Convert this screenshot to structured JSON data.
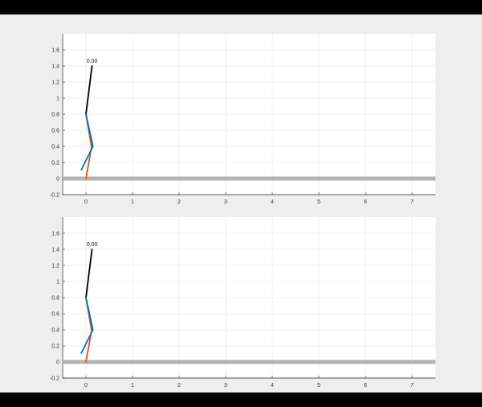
{
  "colors": {
    "background": "#efeeef",
    "axes_background": "#ffffff",
    "grid": "#e6e6e6",
    "axis": "#222222",
    "ground": "#b3b3b3",
    "torso": "#000000",
    "leg_a": "#d95319",
    "leg_b": "#0072bd"
  },
  "chart_data": [
    {
      "type": "line",
      "title": "",
      "xlabel": "",
      "ylabel": "",
      "xlim": [
        -0.5,
        7.5
      ],
      "ylim": [
        -0.2,
        1.8
      ],
      "xticks": [
        "0",
        "1",
        "2",
        "3",
        "4",
        "5",
        "6",
        "7"
      ],
      "yticks": [
        "-0.2",
        "0",
        "0.2",
        "0.4",
        "0.6",
        "0.8",
        "1",
        "1.2",
        "1.4",
        "1.6"
      ],
      "grid": true,
      "ground": {
        "y": 0
      },
      "time_label": {
        "text": "0.00",
        "x": 0.13,
        "y": 1.44
      },
      "series": [
        {
          "color": "#000000",
          "x": [
            0.0,
            0.13
          ],
          "y": [
            0.8,
            1.4
          ]
        },
        {
          "color": "#d95319",
          "x": [
            0.0,
            0.12,
            0.0
          ],
          "y": [
            0.8,
            0.39,
            0.0
          ]
        },
        {
          "color": "#0072bd",
          "x": [
            0.0,
            0.15,
            -0.1
          ],
          "y": [
            0.8,
            0.4,
            0.11
          ]
        }
      ]
    },
    {
      "type": "line",
      "title": "",
      "xlabel": "",
      "ylabel": "",
      "xlim": [
        -0.5,
        7.5
      ],
      "ylim": [
        -0.2,
        1.8
      ],
      "xticks": [
        "0",
        "1",
        "2",
        "3",
        "4",
        "5",
        "6",
        "7"
      ],
      "yticks": [
        "-0.2",
        "0",
        "0.2",
        "0.4",
        "0.6",
        "0.8",
        "1",
        "1.2",
        "1.4",
        "1.6"
      ],
      "grid": true,
      "ground": {
        "y": 0
      },
      "time_label": {
        "text": "0.00",
        "x": 0.13,
        "y": 1.44
      },
      "series": [
        {
          "color": "#000000",
          "x": [
            0.0,
            0.13
          ],
          "y": [
            0.8,
            1.4
          ]
        },
        {
          "color": "#d95319",
          "x": [
            0.0,
            0.12,
            0.0
          ],
          "y": [
            0.8,
            0.39,
            0.0
          ]
        },
        {
          "color": "#0072bd",
          "x": [
            0.0,
            0.15,
            -0.1
          ],
          "y": [
            0.8,
            0.4,
            0.11
          ]
        }
      ]
    }
  ]
}
